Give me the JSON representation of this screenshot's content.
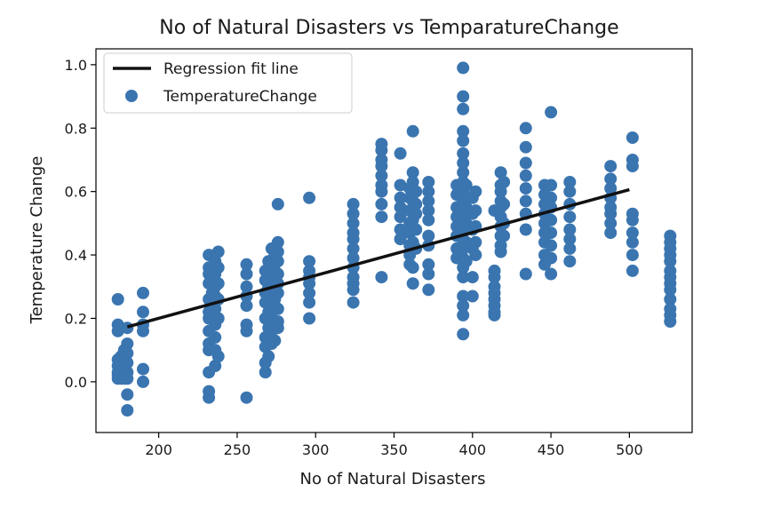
{
  "chart_data": {
    "type": "scatter",
    "title": "No of Natural Disasters vs TemparatureChange",
    "xlabel": "No of Natural Disasters",
    "ylabel": "Temperature Change",
    "xlim": [
      160,
      540
    ],
    "ylim": [
      -0.16,
      1.05
    ],
    "xticks": [
      200,
      250,
      300,
      350,
      400,
      450,
      500
    ],
    "yticks": [
      0.0,
      0.2,
      0.4,
      0.6,
      0.8,
      1.0
    ],
    "grid": false,
    "legend_position": "top-left",
    "series": [
      {
        "name": "TemperatureChange",
        "kind": "scatter",
        "color": "#3a75b0",
        "points": [
          [
            174,
            0.26
          ],
          [
            174,
            0.18
          ],
          [
            174,
            0.16
          ],
          [
            174,
            0.07
          ],
          [
            174,
            0.05
          ],
          [
            174,
            0.03
          ],
          [
            174,
            0.02
          ],
          [
            174,
            0.01
          ],
          [
            176,
            0.08
          ],
          [
            176,
            0.04
          ],
          [
            176,
            0.02
          ],
          [
            176,
            0.01
          ],
          [
            178,
            0.1
          ],
          [
            178,
            0.06
          ],
          [
            178,
            0.04
          ],
          [
            178,
            0.02
          ],
          [
            178,
            0.01
          ],
          [
            180,
            0.17
          ],
          [
            180,
            0.12
          ],
          [
            180,
            0.09
          ],
          [
            180,
            0.06
          ],
          [
            180,
            0.03
          ],
          [
            180,
            0.01
          ],
          [
            180,
            -0.04
          ],
          [
            180,
            -0.09
          ],
          [
            190,
            0.28
          ],
          [
            190,
            0.22
          ],
          [
            190,
            0.18
          ],
          [
            190,
            0.16
          ],
          [
            190,
            0.04
          ],
          [
            190,
            0.0
          ],
          [
            232,
            0.4
          ],
          [
            232,
            0.36
          ],
          [
            232,
            0.34
          ],
          [
            232,
            0.31
          ],
          [
            232,
            0.26
          ],
          [
            232,
            0.22
          ],
          [
            232,
            0.2
          ],
          [
            232,
            0.16
          ],
          [
            232,
            0.12
          ],
          [
            232,
            0.1
          ],
          [
            232,
            0.03
          ],
          [
            232,
            -0.03
          ],
          [
            232,
            -0.05
          ],
          [
            234,
            0.32
          ],
          [
            234,
            0.28
          ],
          [
            234,
            0.24
          ],
          [
            236,
            0.38
          ],
          [
            236,
            0.34
          ],
          [
            236,
            0.3
          ],
          [
            236,
            0.27
          ],
          [
            236,
            0.23
          ],
          [
            236,
            0.18
          ],
          [
            236,
            0.14
          ],
          [
            236,
            0.1
          ],
          [
            236,
            0.05
          ],
          [
            238,
            0.41
          ],
          [
            238,
            0.36
          ],
          [
            238,
            0.31
          ],
          [
            238,
            0.26
          ],
          [
            238,
            0.2
          ],
          [
            238,
            0.08
          ],
          [
            256,
            0.37
          ],
          [
            256,
            0.34
          ],
          [
            256,
            0.3
          ],
          [
            256,
            0.27
          ],
          [
            256,
            0.24
          ],
          [
            256,
            0.18
          ],
          [
            256,
            0.16
          ],
          [
            256,
            -0.05
          ],
          [
            268,
            0.35
          ],
          [
            268,
            0.32
          ],
          [
            268,
            0.28
          ],
          [
            268,
            0.25
          ],
          [
            268,
            0.2
          ],
          [
            268,
            0.14
          ],
          [
            268,
            0.11
          ],
          [
            268,
            0.06
          ],
          [
            268,
            0.03
          ],
          [
            270,
            0.38
          ],
          [
            270,
            0.3
          ],
          [
            270,
            0.22
          ],
          [
            270,
            0.17
          ],
          [
            270,
            0.12
          ],
          [
            270,
            0.08
          ],
          [
            272,
            0.42
          ],
          [
            272,
            0.37
          ],
          [
            272,
            0.33
          ],
          [
            272,
            0.29
          ],
          [
            272,
            0.25
          ],
          [
            272,
            0.2
          ],
          [
            272,
            0.16
          ],
          [
            272,
            0.12
          ],
          [
            274,
            0.4
          ],
          [
            274,
            0.35
          ],
          [
            274,
            0.3
          ],
          [
            274,
            0.26
          ],
          [
            274,
            0.18
          ],
          [
            274,
            0.13
          ],
          [
            276,
            0.56
          ],
          [
            276,
            0.44
          ],
          [
            276,
            0.41
          ],
          [
            276,
            0.38
          ],
          [
            276,
            0.34
          ],
          [
            276,
            0.31
          ],
          [
            276,
            0.28
          ],
          [
            276,
            0.23
          ],
          [
            276,
            0.19
          ],
          [
            276,
            0.17
          ],
          [
            296,
            0.58
          ],
          [
            296,
            0.38
          ],
          [
            296,
            0.35
          ],
          [
            296,
            0.33
          ],
          [
            296,
            0.31
          ],
          [
            296,
            0.28
          ],
          [
            296,
            0.25
          ],
          [
            296,
            0.2
          ],
          [
            324,
            0.56
          ],
          [
            324,
            0.53
          ],
          [
            324,
            0.5
          ],
          [
            324,
            0.47
          ],
          [
            324,
            0.45
          ],
          [
            324,
            0.42
          ],
          [
            324,
            0.39
          ],
          [
            324,
            0.36
          ],
          [
            324,
            0.33
          ],
          [
            324,
            0.31
          ],
          [
            324,
            0.29
          ],
          [
            324,
            0.25
          ],
          [
            342,
            0.75
          ],
          [
            342,
            0.73
          ],
          [
            342,
            0.7
          ],
          [
            342,
            0.68
          ],
          [
            342,
            0.65
          ],
          [
            342,
            0.62
          ],
          [
            342,
            0.6
          ],
          [
            342,
            0.56
          ],
          [
            342,
            0.52
          ],
          [
            342,
            0.33
          ],
          [
            354,
            0.72
          ],
          [
            354,
            0.62
          ],
          [
            354,
            0.58
          ],
          [
            354,
            0.55
          ],
          [
            354,
            0.52
          ],
          [
            354,
            0.48
          ],
          [
            354,
            0.45
          ],
          [
            360,
            0.61
          ],
          [
            360,
            0.58
          ],
          [
            360,
            0.54
          ],
          [
            360,
            0.5
          ],
          [
            360,
            0.47
          ],
          [
            360,
            0.43
          ],
          [
            360,
            0.4
          ],
          [
            360,
            0.37
          ],
          [
            362,
            0.79
          ],
          [
            362,
            0.66
          ],
          [
            362,
            0.63
          ],
          [
            362,
            0.6
          ],
          [
            362,
            0.57
          ],
          [
            362,
            0.51
          ],
          [
            362,
            0.44
          ],
          [
            362,
            0.36
          ],
          [
            362,
            0.31
          ],
          [
            364,
            0.6
          ],
          [
            364,
            0.56
          ],
          [
            364,
            0.53
          ],
          [
            364,
            0.48
          ],
          [
            364,
            0.42
          ],
          [
            372,
            0.63
          ],
          [
            372,
            0.6
          ],
          [
            372,
            0.57
          ],
          [
            372,
            0.54
          ],
          [
            372,
            0.51
          ],
          [
            372,
            0.46
          ],
          [
            372,
            0.43
          ],
          [
            372,
            0.37
          ],
          [
            372,
            0.34
          ],
          [
            372,
            0.29
          ],
          [
            390,
            0.62
          ],
          [
            390,
            0.59
          ],
          [
            390,
            0.55
          ],
          [
            390,
            0.52
          ],
          [
            390,
            0.49
          ],
          [
            390,
            0.46
          ],
          [
            390,
            0.42
          ],
          [
            390,
            0.39
          ],
          [
            394,
            0.99
          ],
          [
            394,
            0.9
          ],
          [
            394,
            0.86
          ],
          [
            394,
            0.79
          ],
          [
            394,
            0.76
          ],
          [
            394,
            0.72
          ],
          [
            394,
            0.69
          ],
          [
            394,
            0.66
          ],
          [
            394,
            0.63
          ],
          [
            394,
            0.6
          ],
          [
            394,
            0.57
          ],
          [
            394,
            0.54
          ],
          [
            394,
            0.51
          ],
          [
            394,
            0.48
          ],
          [
            394,
            0.45
          ],
          [
            394,
            0.42
          ],
          [
            394,
            0.39
          ],
          [
            394,
            0.36
          ],
          [
            394,
            0.33
          ],
          [
            394,
            0.27
          ],
          [
            394,
            0.24
          ],
          [
            394,
            0.21
          ],
          [
            394,
            0.15
          ],
          [
            396,
            0.62
          ],
          [
            396,
            0.55
          ],
          [
            396,
            0.5
          ],
          [
            396,
            0.44
          ],
          [
            396,
            0.38
          ],
          [
            400,
            0.58
          ],
          [
            400,
            0.53
          ],
          [
            400,
            0.48
          ],
          [
            400,
            0.42
          ],
          [
            400,
            0.33
          ],
          [
            400,
            0.27
          ],
          [
            402,
            0.6
          ],
          [
            402,
            0.54
          ],
          [
            402,
            0.49
          ],
          [
            402,
            0.44
          ],
          [
            402,
            0.4
          ],
          [
            414,
            0.54
          ],
          [
            414,
            0.35
          ],
          [
            414,
            0.33
          ],
          [
            414,
            0.3
          ],
          [
            414,
            0.28
          ],
          [
            414,
            0.26
          ],
          [
            414,
            0.24
          ],
          [
            414,
            0.22
          ],
          [
            414,
            0.21
          ],
          [
            418,
            0.66
          ],
          [
            418,
            0.62
          ],
          [
            418,
            0.6
          ],
          [
            418,
            0.57
          ],
          [
            418,
            0.55
          ],
          [
            418,
            0.52
          ],
          [
            418,
            0.49
          ],
          [
            418,
            0.46
          ],
          [
            418,
            0.43
          ],
          [
            418,
            0.41
          ],
          [
            420,
            0.63
          ],
          [
            420,
            0.56
          ],
          [
            420,
            0.5
          ],
          [
            420,
            0.46
          ],
          [
            434,
            0.8
          ],
          [
            434,
            0.74
          ],
          [
            434,
            0.69
          ],
          [
            434,
            0.65
          ],
          [
            434,
            0.61
          ],
          [
            434,
            0.57
          ],
          [
            434,
            0.53
          ],
          [
            434,
            0.48
          ],
          [
            434,
            0.34
          ],
          [
            446,
            0.62
          ],
          [
            446,
            0.59
          ],
          [
            446,
            0.56
          ],
          [
            446,
            0.53
          ],
          [
            446,
            0.5
          ],
          [
            446,
            0.47
          ],
          [
            446,
            0.44
          ],
          [
            446,
            0.4
          ],
          [
            446,
            0.37
          ],
          [
            450,
            0.85
          ],
          [
            450,
            0.62
          ],
          [
            450,
            0.58
          ],
          [
            450,
            0.55
          ],
          [
            450,
            0.51
          ],
          [
            450,
            0.47
          ],
          [
            450,
            0.43
          ],
          [
            450,
            0.39
          ],
          [
            450,
            0.34
          ],
          [
            462,
            0.63
          ],
          [
            462,
            0.6
          ],
          [
            462,
            0.56
          ],
          [
            462,
            0.52
          ],
          [
            462,
            0.48
          ],
          [
            462,
            0.45
          ],
          [
            462,
            0.42
          ],
          [
            462,
            0.38
          ],
          [
            488,
            0.68
          ],
          [
            488,
            0.64
          ],
          [
            488,
            0.61
          ],
          [
            488,
            0.58
          ],
          [
            488,
            0.55
          ],
          [
            488,
            0.53
          ],
          [
            488,
            0.5
          ],
          [
            488,
            0.47
          ],
          [
            502,
            0.77
          ],
          [
            502,
            0.7
          ],
          [
            502,
            0.68
          ],
          [
            502,
            0.53
          ],
          [
            502,
            0.51
          ],
          [
            502,
            0.47
          ],
          [
            502,
            0.44
          ],
          [
            502,
            0.4
          ],
          [
            502,
            0.35
          ],
          [
            526,
            0.46
          ],
          [
            526,
            0.44
          ],
          [
            526,
            0.42
          ],
          [
            526,
            0.4
          ],
          [
            526,
            0.38
          ],
          [
            526,
            0.35
          ],
          [
            526,
            0.33
          ],
          [
            526,
            0.31
          ],
          [
            526,
            0.29
          ],
          [
            526,
            0.26
          ],
          [
            526,
            0.23
          ],
          [
            526,
            0.21
          ],
          [
            526,
            0.19
          ]
        ]
      },
      {
        "name": "Regression fit line",
        "kind": "line",
        "color": "#111111",
        "x": [
          180,
          500
        ],
        "y": [
          0.173,
          0.606
        ]
      }
    ]
  }
}
